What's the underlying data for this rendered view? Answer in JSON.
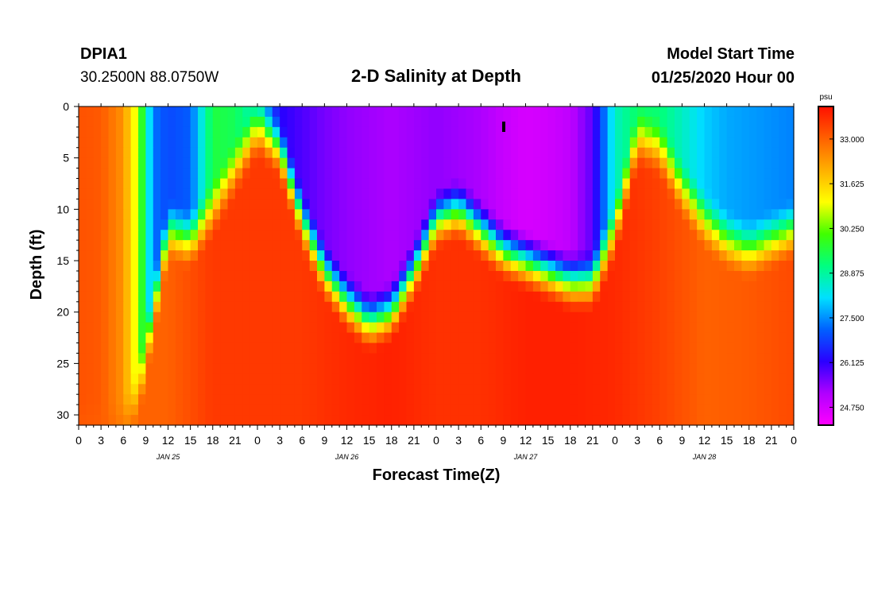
{
  "header": {
    "station": "DPIA1",
    "coords": "30.2500N 88.0750W",
    "title": "2-D Salinity at Depth",
    "model_start_label": "Model Start Time",
    "model_start_value": "01/25/2020 Hour 00"
  },
  "chart_data": {
    "type": "heatmap",
    "title": "2-D Salinity at Depth",
    "xlabel": "Forecast Time(Z)",
    "ylabel": "Depth (ft)",
    "x_unit": "hours since model start",
    "x_range": [
      0,
      96
    ],
    "y_range": [
      0,
      31
    ],
    "y_inverted": true,
    "x_ticks": [
      0,
      3,
      6,
      9,
      12,
      15,
      18,
      21,
      24,
      27,
      30,
      33,
      36,
      39,
      42,
      45,
      48,
      51,
      54,
      57,
      60,
      63,
      66,
      69,
      72,
      75,
      78,
      81,
      84,
      87,
      90,
      93,
      96
    ],
    "x_tick_labels": [
      "0",
      "3",
      "6",
      "9",
      "12",
      "15",
      "18",
      "21",
      "0",
      "3",
      "6",
      "9",
      "12",
      "15",
      "18",
      "21",
      "0",
      "3",
      "6",
      "9",
      "12",
      "15",
      "18",
      "21",
      "0",
      "3",
      "6",
      "9",
      "12",
      "15",
      "18",
      "21",
      "0"
    ],
    "y_ticks": [
      0,
      5,
      10,
      15,
      20,
      25,
      30
    ],
    "y_tick_labels": [
      "0",
      "5",
      "10",
      "15",
      "20",
      "25",
      "30"
    ],
    "day_labels": [
      {
        "text": "JAN 25",
        "x": 12
      },
      {
        "text": "JAN 26",
        "x": 36
      },
      {
        "text": "JAN 27",
        "x": 60
      },
      {
        "text": "JAN 28",
        "x": 84
      }
    ],
    "colorbar": {
      "unit": "psu",
      "min": 24.2,
      "max": 34.0,
      "tick_values": [
        33.0,
        31.625,
        30.25,
        28.875,
        27.5,
        26.125,
        24.75
      ],
      "tick_labels": [
        "33.000",
        "31.625",
        "30.250",
        "28.875",
        "27.500",
        "26.125",
        "24.750"
      ],
      "colors": [
        "#ff00ff",
        "#b000ff",
        "#2a00ff",
        "#0060ff",
        "#00e0ff",
        "#00ff80",
        "#40ff00",
        "#ffff00",
        "#ffb000",
        "#ff6000",
        "#ff1000"
      ]
    },
    "surface_salinity_time_series": {
      "x": [
        0,
        3,
        6,
        8,
        10,
        12,
        15,
        18,
        21,
        24,
        27,
        30,
        33,
        36,
        39,
        42,
        45,
        48,
        51,
        54,
        57,
        60,
        63,
        66,
        69,
        72,
        75,
        78,
        81,
        84,
        87,
        90,
        93,
        96
      ],
      "values": [
        33.2,
        33.1,
        32.4,
        30.6,
        27.3,
        26.9,
        27.1,
        29.6,
        29.4,
        28.5,
        26.2,
        25.9,
        25.6,
        25.4,
        25.3,
        25.2,
        25.3,
        25.4,
        25.3,
        25.2,
        24.9,
        24.7,
        24.8,
        25.0,
        25.8,
        28.6,
        29.3,
        29.2,
        28.6,
        28.0,
        27.7,
        27.6,
        27.5,
        27.4
      ]
    },
    "halocline_depth_ft": {
      "x": [
        0,
        6,
        8,
        12,
        15,
        18,
        21,
        24,
        27,
        30,
        33,
        36,
        39,
        42,
        45,
        48,
        51,
        54,
        57,
        60,
        63,
        66,
        69,
        72,
        75,
        78,
        81,
        84,
        87,
        90,
        93,
        96
      ],
      "values": [
        31,
        31,
        28,
        12,
        13,
        10,
        6,
        2,
        4,
        11,
        16,
        19,
        21,
        20,
        16,
        11,
        10,
        12,
        14,
        15,
        16,
        17,
        17,
        12,
        3,
        4,
        8,
        11,
        13,
        14,
        13,
        12
      ]
    },
    "bottom_layer_salinity": {
      "x": [
        0,
        6,
        12,
        18,
        24,
        30,
        36,
        42,
        48,
        54,
        60,
        66,
        72,
        78,
        84,
        90,
        96
      ],
      "values": [
        33.0,
        33.0,
        33.0,
        33.5,
        33.5,
        33.5,
        33.7,
        33.8,
        33.6,
        33.6,
        33.8,
        33.8,
        33.7,
        33.4,
        33.0,
        33.1,
        33.3
      ]
    }
  }
}
